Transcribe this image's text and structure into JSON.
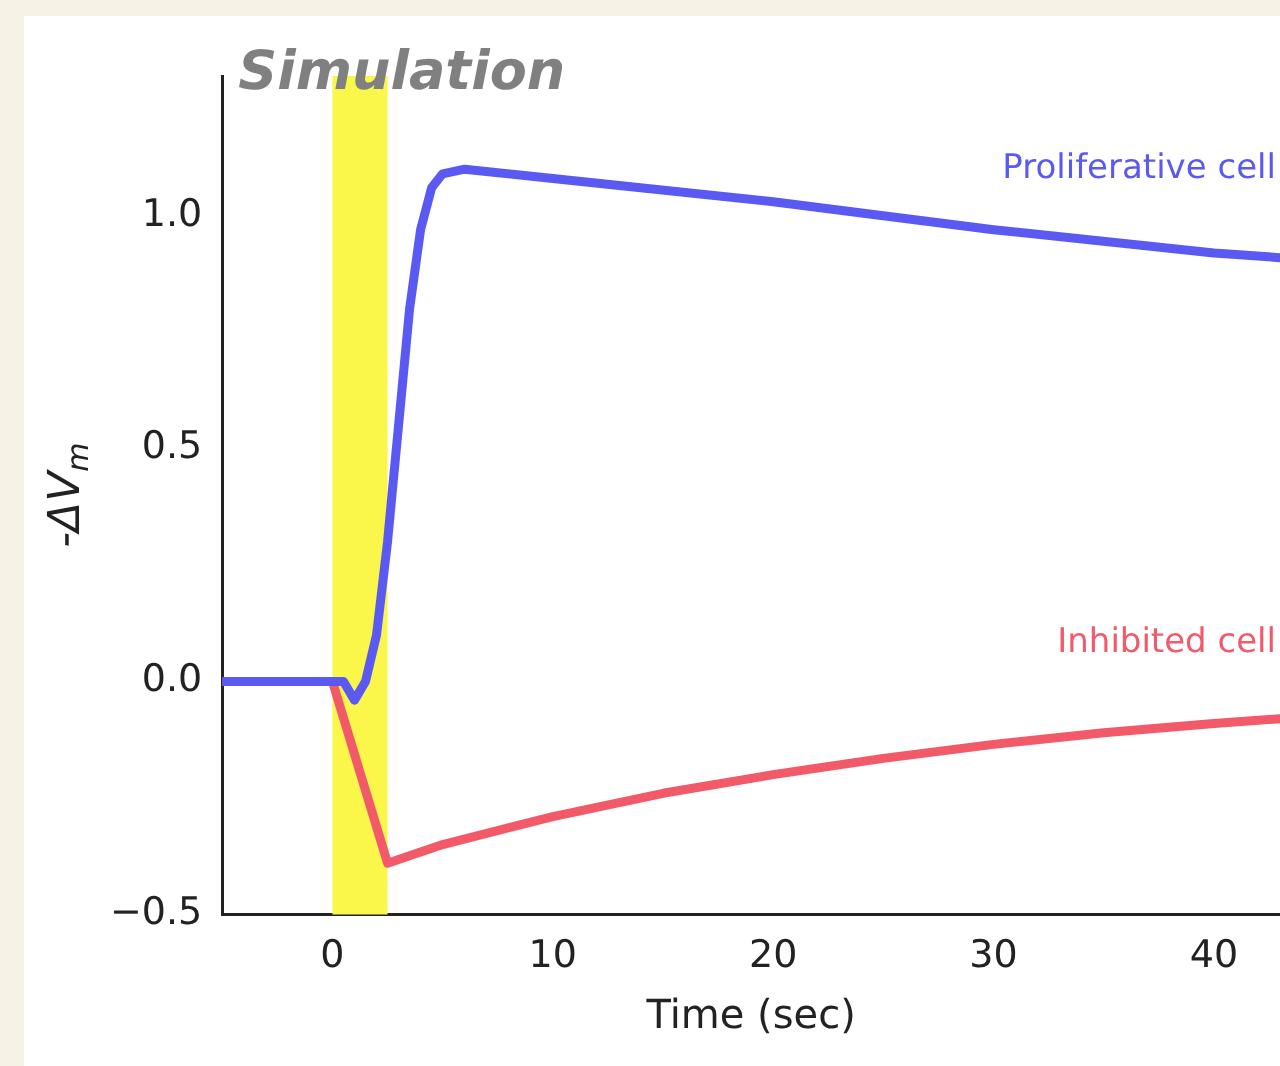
{
  "chart_data": {
    "type": "line",
    "title": "Simulation",
    "xlabel": "Time (sec)",
    "ylabel": "-ΔV$_{m}$",
    "xlim": [
      -5,
      43
    ],
    "xticks": [
      0,
      10,
      20,
      30,
      40
    ],
    "ylim": [
      -0.5,
      1.3
    ],
    "yticks": [
      -0.5,
      {
        "value": 0,
        "label": "0.0"
      },
      0.5,
      {
        "value": 1,
        "label": "1.0"
      }
    ],
    "grid": false,
    "legend": false,
    "marker": "none",
    "line_style": "solid",
    "bands": [
      {
        "axis": "x",
        "from": 0,
        "to": 2.5,
        "color": "#fbf64a"
      }
    ],
    "series": [
      {
        "name": "Proliferative cell",
        "color": "#5a5af2",
        "x": [
          -5,
          0.5,
          1,
          1.5,
          2,
          2.5,
          3,
          3.5,
          4,
          4.5,
          5,
          6,
          10,
          20,
          30,
          40,
          43
        ],
        "values": [
          0,
          0,
          -0.04,
          0,
          0.1,
          0.3,
          0.55,
          0.8,
          0.97,
          1.06,
          1.09,
          1.1,
          1.08,
          1.03,
          0.97,
          0.92,
          0.91
        ]
      },
      {
        "name": "Inhibited cell",
        "color": "#f25a6a",
        "x": [
          -5,
          0,
          2.5,
          5,
          10,
          15,
          20,
          25,
          30,
          35,
          40,
          43
        ],
        "values": [
          0,
          0,
          -0.39,
          -0.35,
          -0.29,
          -0.24,
          -0.2,
          -0.165,
          -0.135,
          -0.11,
          -0.09,
          -0.08
        ]
      }
    ]
  }
}
